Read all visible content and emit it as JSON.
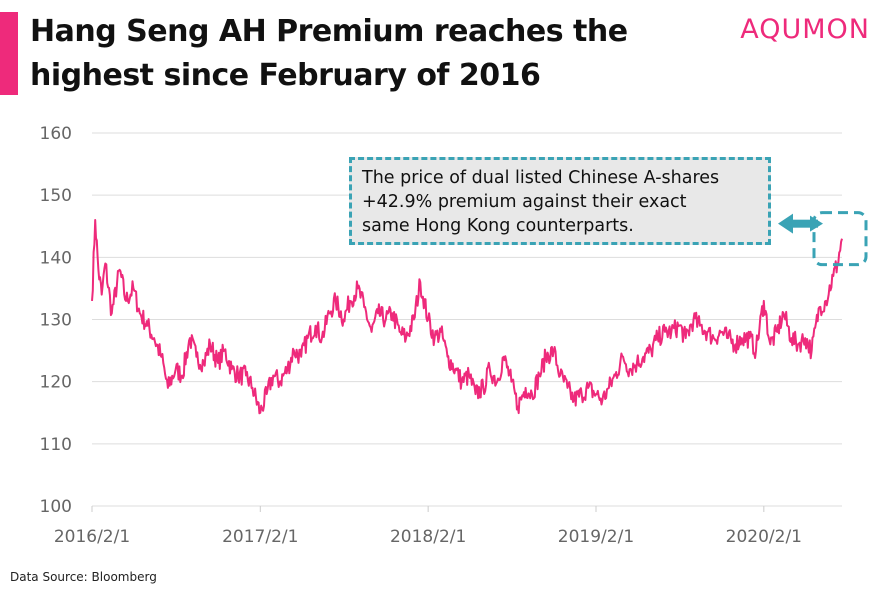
{
  "header": {
    "title_line1": "Hang Seng AH Premium reaches the",
    "title_line2": "highest since February of 2016",
    "brand": "AQUMON",
    "accent_color": "#ee2a7b"
  },
  "footer": {
    "source": "Data Source: Bloomberg"
  },
  "annotation": {
    "lines": [
      "The price of dual listed Chinese A-shares",
      "+42.9% premium against their exact",
      "same Hong Kong counterparts."
    ],
    "border_color": "#3aa3b5",
    "highlight": "Hang Seng AH Premium at about 143 in Jul-2020"
  },
  "chart_data": {
    "type": "line",
    "title": "Hang Seng AH Premium reaches the highest since February of 2016",
    "xlabel": "",
    "ylabel": "",
    "ylim": [
      100,
      160
    ],
    "yticks": [
      100,
      110,
      120,
      130,
      140,
      150,
      160
    ],
    "xticks": [
      "2016/2/1",
      "2017/2/1",
      "2018/2/1",
      "2019/2/1",
      "2020/2/1"
    ],
    "xlim": [
      "2016-02-01",
      "2020-07-20"
    ],
    "grid": "horizontal",
    "line_color": "#ee2a7b",
    "series": [
      {
        "x": [
          "2016-02-01",
          "2016-02-08",
          "2016-02-15",
          "2016-02-22",
          "2016-03-01",
          "2016-03-15",
          "2016-04-01",
          "2016-04-15",
          "2016-05-01",
          "2016-05-15",
          "2016-06-01",
          "2016-06-15",
          "2016-07-01",
          "2016-07-15",
          "2016-08-01",
          "2016-08-15",
          "2016-09-01",
          "2016-09-15",
          "2016-10-01",
          "2016-10-15",
          "2016-11-01",
          "2016-11-15",
          "2016-12-01",
          "2016-12-15",
          "2017-01-01",
          "2017-01-15",
          "2017-02-01",
          "2017-02-15",
          "2017-03-01",
          "2017-03-15",
          "2017-04-01",
          "2017-04-15",
          "2017-05-01",
          "2017-05-15",
          "2017-06-01",
          "2017-06-15",
          "2017-07-01",
          "2017-07-15",
          "2017-08-01",
          "2017-08-15",
          "2017-09-01",
          "2017-09-15",
          "2017-10-01",
          "2017-10-15",
          "2017-11-01",
          "2017-11-15",
          "2017-12-01",
          "2017-12-15",
          "2018-01-01",
          "2018-01-15",
          "2018-02-01",
          "2018-02-15",
          "2018-03-01",
          "2018-03-15",
          "2018-04-01",
          "2018-04-15",
          "2018-05-01",
          "2018-05-15",
          "2018-06-01",
          "2018-06-15",
          "2018-07-01",
          "2018-07-15",
          "2018-08-01",
          "2018-08-15",
          "2018-09-01",
          "2018-09-15",
          "2018-10-01",
          "2018-10-15",
          "2018-11-01",
          "2018-11-15",
          "2018-12-01",
          "2018-12-15",
          "2019-01-01",
          "2019-01-15",
          "2019-02-01",
          "2019-02-15",
          "2019-03-01",
          "2019-03-15",
          "2019-04-01",
          "2019-04-15",
          "2019-05-01",
          "2019-05-15",
          "2019-06-01",
          "2019-06-15",
          "2019-07-01",
          "2019-07-15",
          "2019-08-01",
          "2019-08-15",
          "2019-09-01",
          "2019-09-15",
          "2019-10-01",
          "2019-10-15",
          "2019-11-01",
          "2019-11-15",
          "2019-12-01",
          "2019-12-15",
          "2020-01-01",
          "2020-01-15",
          "2020-02-01",
          "2020-02-15",
          "2020-03-01",
          "2020-03-15",
          "2020-04-01",
          "2020-04-15",
          "2020-05-01",
          "2020-05-15",
          "2020-06-01",
          "2020-06-15",
          "2020-07-01",
          "2020-07-10",
          "2020-07-20"
        ],
        "y": [
          133,
          146,
          138,
          134,
          139,
          131,
          138,
          133,
          135,
          131,
          129,
          127,
          124,
          119,
          122,
          121,
          127,
          124,
          123,
          126,
          123,
          125,
          122,
          121,
          121,
          119,
          115,
          118,
          121,
          120,
          122,
          125,
          124,
          127,
          129,
          127,
          131,
          133,
          130,
          133,
          135,
          132,
          128,
          131,
          130,
          131,
          128,
          127,
          130,
          136,
          130,
          127,
          128,
          124,
          122,
          120,
          121,
          118,
          119,
          122,
          120,
          124,
          120,
          116,
          119,
          118,
          121,
          124,
          125,
          121,
          119,
          117,
          118,
          119,
          118,
          117,
          119,
          121,
          124,
          122,
          123,
          124,
          125,
          127,
          128,
          128,
          129,
          127,
          130,
          129,
          128,
          127,
          128,
          127,
          126,
          127,
          127,
          125,
          133,
          126,
          128,
          131,
          127,
          126,
          127,
          125,
          132,
          133,
          137,
          139,
          143
        ]
      }
    ]
  }
}
